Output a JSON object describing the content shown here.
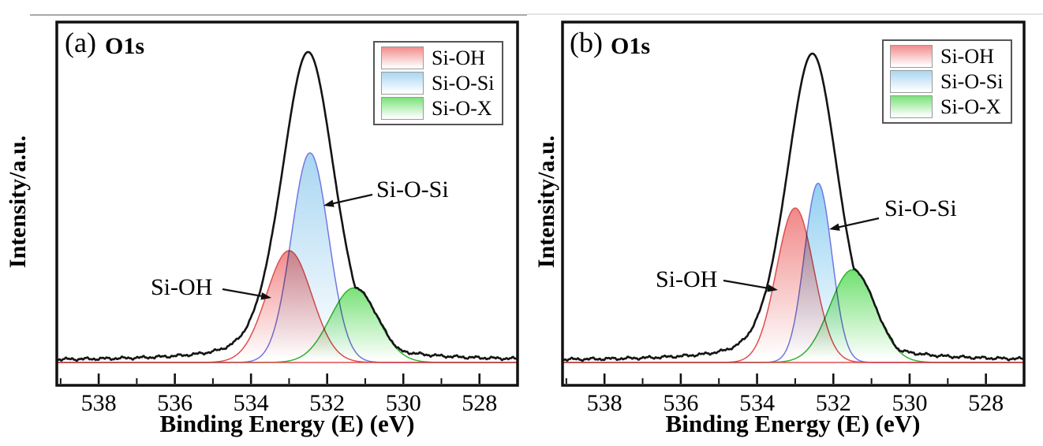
{
  "page": {
    "background": "#ffffff",
    "top_divider_left_color": "#a9a9a9",
    "top_divider_right_color": "#e4e4e4"
  },
  "chart_data": {
    "type": "line",
    "description": "Two-panel XPS O1s spectra with fitted component peaks (Si-OH, Si-O-Si, Si-O-X), total envelope and flat baseline",
    "xlabel": "Binding Energy (E) (eV)",
    "ylabel": "Intensity/a.u.",
    "x_axis": {
      "unit": "eV",
      "reversed": true,
      "ticks": [
        538,
        536,
        534,
        532,
        530,
        528
      ],
      "minor_ticks": [
        539,
        537,
        535,
        533,
        531,
        529,
        527
      ],
      "range_left_to_right": [
        539.1,
        527.0
      ]
    },
    "y_axis": {
      "unit": "a.u.",
      "ticks": [],
      "note": "arbitrary units, no tick labels"
    },
    "legend": {
      "position": "top-right",
      "entries": [
        {
          "label": "Si-OH",
          "color": "#f28c8c",
          "line": "#e04e4e"
        },
        {
          "label": "Si-O-Si",
          "color": "#a9d6f2",
          "line": "#7277e2"
        },
        {
          "label": "Si-O-X",
          "color": "#79e279",
          "line": "#2fb32f"
        }
      ]
    },
    "envelope_color": "#141414",
    "baseline_color": "#e04e4e",
    "panels": [
      {
        "label": "(a)",
        "title": "O1s",
        "envelope": {
          "name": "raw data / total fit",
          "center_ev": 532.5,
          "rel_height": 1.0,
          "fwhm_ev": 1.65,
          "lorentz_mix": 0.3
        },
        "peaks": [
          {
            "name": "Si-OH",
            "center_ev": 533.0,
            "rel_height": 0.36,
            "fwhm_ev": 1.4,
            "fill": "#f28c8c",
            "line": "#e04e4e"
          },
          {
            "name": "Si-O-Si",
            "center_ev": 532.45,
            "rel_height": 0.675,
            "fwhm_ev": 1.15,
            "fill": "#a9d6f2",
            "line": "#7277e2"
          },
          {
            "name": "Si-O-X",
            "center_ev": 531.3,
            "rel_height": 0.24,
            "fwhm_ev": 1.45,
            "fill": "#79e279",
            "line": "#2fb32f"
          }
        ],
        "annotations": [
          {
            "text": "Si-OH",
            "points_to": "Si-OH component peak"
          },
          {
            "text": "Si-O-Si",
            "points_to": "Si-O-Si component peak"
          }
        ]
      },
      {
        "label": "(b)",
        "title": "O1s",
        "envelope": {
          "name": "raw data / total fit",
          "center_ev": 532.55,
          "rel_height": 1.0,
          "fwhm_ev": 1.6,
          "lorentz_mix": 0.3
        },
        "peaks": [
          {
            "name": "Si-OH",
            "center_ev": 533.0,
            "rel_height": 0.5,
            "fwhm_ev": 1.15,
            "fill": "#f08888",
            "line": "#e04e4e"
          },
          {
            "name": "Si-O-Si",
            "center_ev": 532.4,
            "rel_height": 0.58,
            "fwhm_ev": 0.85,
            "fill": "#92d0f2",
            "line": "#7277e2"
          },
          {
            "name": "Si-O-X",
            "center_ev": 531.5,
            "rel_height": 0.3,
            "fwhm_ev": 1.4,
            "fill": "#70e070",
            "line": "#2fb32f"
          }
        ],
        "annotations": [
          {
            "text": "Si-OH",
            "points_to": "Si-OH component peak"
          },
          {
            "text": "Si-O-Si",
            "points_to": "Si-O-Si component peak"
          }
        ]
      }
    ]
  }
}
